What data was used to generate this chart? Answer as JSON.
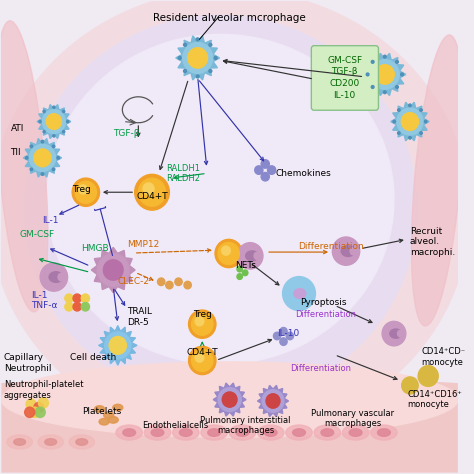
{
  "bg_color": "#f0eaf2",
  "title": "Resident alveolar mcrophage",
  "gmcsf_box_text": "GM-CSF\nTGF-β\nCD200\nIL-10",
  "labels": {
    "ATI": [
      0.02,
      0.73,
      "ATI",
      6.5,
      "black",
      "left"
    ],
    "TII": [
      0.02,
      0.68,
      "TII",
      6.5,
      "black",
      "left"
    ],
    "Treg_top": [
      0.175,
      0.6,
      "Treg",
      6.5,
      "black",
      "center"
    ],
    "IL1_top": [
      0.09,
      0.535,
      "IL-1",
      6.5,
      "#3333bb",
      "left"
    ],
    "GMCSF": [
      0.04,
      0.505,
      "GM-CSF",
      6.5,
      "#009944",
      "left"
    ],
    "HMGB": [
      0.175,
      0.475,
      "HMGB",
      6.5,
      "#009944",
      "left"
    ],
    "CD4T_top": [
      0.33,
      0.585,
      "CD4+T",
      6.5,
      "black",
      "center"
    ],
    "RALDH": [
      0.36,
      0.635,
      "RALDH1\nRALDH2",
      6.0,
      "#009944",
      "left"
    ],
    "TGFb": [
      0.245,
      0.72,
      "TGF-β",
      6.5,
      "#009944",
      "left"
    ],
    "Chemokines": [
      0.6,
      0.635,
      "Chemokines",
      6.5,
      "black",
      "left"
    ],
    "MMP12": [
      0.275,
      0.485,
      "MMP12",
      6.5,
      "#cc6600",
      "left"
    ],
    "CLEC2": [
      0.255,
      0.405,
      "CLEC-2",
      6.5,
      "#cc6600",
      "left"
    ],
    "NETs": [
      0.535,
      0.44,
      "NETs",
      6.5,
      "black",
      "center"
    ],
    "Differentiation_top": [
      0.65,
      0.48,
      "Differentiation",
      6.5,
      "#cc6600",
      "left"
    ],
    "Pyroptosis": [
      0.655,
      0.36,
      "Pyroptosis",
      6.5,
      "black",
      "left"
    ],
    "IL1_TNFa": [
      0.065,
      0.365,
      "IL-1\nTNF-α",
      6.5,
      "#3333bb",
      "left"
    ],
    "TRAIL_DR5": [
      0.275,
      0.33,
      "TRAIL\nDR-5",
      6.5,
      "black",
      "left"
    ],
    "Cell_death": [
      0.2,
      0.245,
      "Cell death",
      6.5,
      "black",
      "center"
    ],
    "Treg_bot": [
      0.44,
      0.335,
      "Treg",
      6.5,
      "black",
      "center"
    ],
    "CD4T_bot": [
      0.44,
      0.255,
      "CD4+T",
      6.5,
      "black",
      "center"
    ],
    "IL10": [
      0.605,
      0.295,
      "IL-10",
      6.5,
      "#3333bb",
      "left"
    ],
    "Differentiation_mid": [
      0.71,
      0.335,
      "Differentiation",
      6.0,
      "#9933cc",
      "center"
    ],
    "Differentiation_bot": [
      0.7,
      0.22,
      "Differentiation",
      6.0,
      "#9933cc",
      "center"
    ],
    "Recruit_alveolar": [
      0.895,
      0.49,
      "Recruit\nalveol.\nmacrophi.",
      6.5,
      "black",
      "left"
    ],
    "Capillary": [
      0.005,
      0.245,
      "Capillary",
      6.5,
      "black",
      "left"
    ],
    "Neutrophil": [
      0.005,
      0.22,
      "Neutrophil",
      6.5,
      "black",
      "left"
    ],
    "NP_aggregates": [
      0.005,
      0.175,
      "Neutrophil-platelet\naggregates",
      6.0,
      "black",
      "left"
    ],
    "Platelets": [
      0.22,
      0.13,
      "Platelets",
      6.5,
      "black",
      "center"
    ],
    "Endothelial": [
      0.38,
      0.1,
      "Endothelialcells",
      6.0,
      "black",
      "center"
    ],
    "Pulm_interstitial": [
      0.535,
      0.1,
      "Pulmonary interstitial\nmacrophages",
      6.0,
      "black",
      "center"
    ],
    "Pulm_vascular": [
      0.77,
      0.115,
      "Pulmonary vascular\nmacrophages",
      6.0,
      "black",
      "center"
    ],
    "CD14CD16neg": [
      0.92,
      0.245,
      "CD14⁺CD⁻\nmonocyte",
      6.0,
      "black",
      "left"
    ],
    "CD14CD16pos": [
      0.89,
      0.155,
      "CD14⁺CD16⁺\nmonocyte",
      6.0,
      "black",
      "left"
    ]
  }
}
